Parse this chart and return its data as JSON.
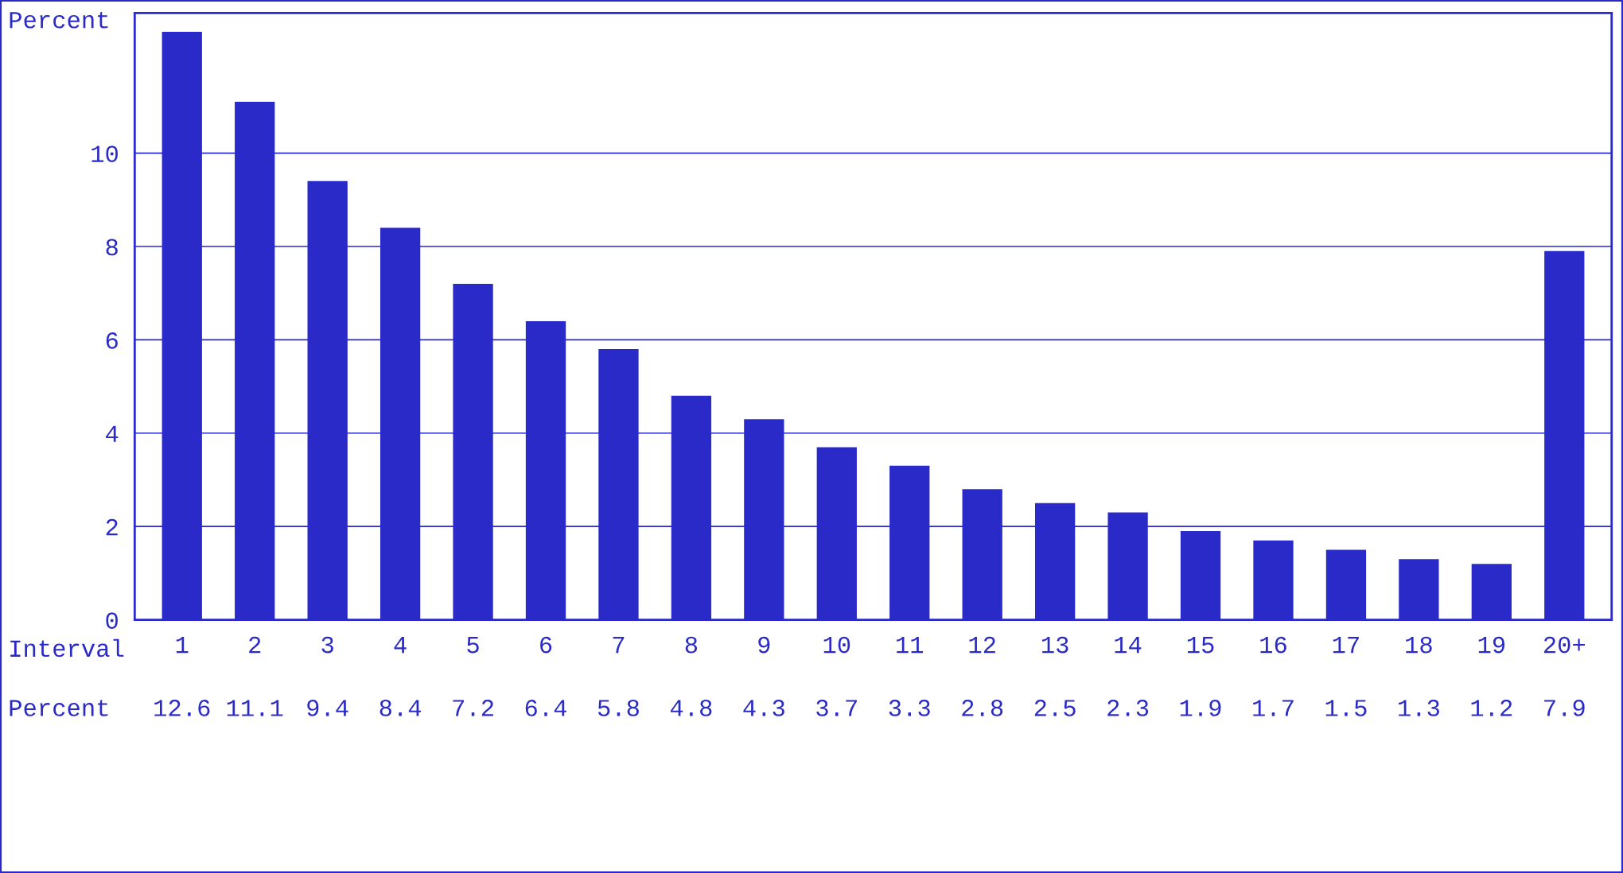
{
  "chart_data": {
    "type": "bar",
    "ylabel": "Percent",
    "xlabel": "Interval",
    "categories": [
      "1",
      "2",
      "3",
      "4",
      "5",
      "6",
      "7",
      "8",
      "9",
      "10",
      "11",
      "12",
      "13",
      "14",
      "15",
      "16",
      "17",
      "18",
      "19",
      "20+"
    ],
    "values": [
      12.6,
      11.1,
      9.4,
      8.4,
      7.2,
      6.4,
      5.8,
      4.8,
      4.3,
      3.7,
      3.3,
      2.8,
      2.5,
      2.3,
      1.9,
      1.7,
      1.5,
      1.3,
      1.2,
      7.9
    ],
    "color": "#2a2ac8",
    "ylim": [
      0,
      13
    ],
    "yticks": [
      0,
      2,
      4,
      6,
      8,
      10
    ],
    "grid": "y",
    "data_labels": true,
    "annotations": [
      "Percent"
    ]
  }
}
